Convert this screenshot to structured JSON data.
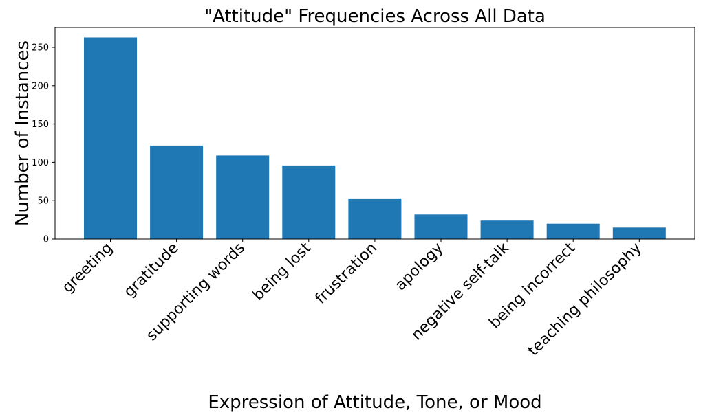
{
  "chart_data": {
    "type": "bar",
    "title": "\"Attitude\" Frequencies Across All Data",
    "xlabel": "Expression of Attitude, Tone, or Mood",
    "ylabel": "Number of Instances",
    "categories": [
      "greeting",
      "gratitude",
      "supporting words",
      "being lost",
      "frustration",
      "apology",
      "negative self-talk",
      "being incorrect",
      "teaching philosophy"
    ],
    "values": [
      263,
      122,
      109,
      96,
      53,
      32,
      24,
      20,
      15
    ],
    "ylim": [
      0,
      276
    ],
    "yticks": [
      0,
      50,
      100,
      150,
      200,
      250
    ],
    "bar_color": "#1f77b4",
    "grid": false,
    "legend": "none"
  }
}
